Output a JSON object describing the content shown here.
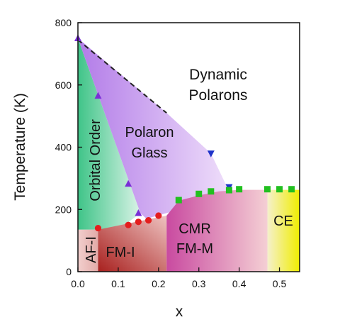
{
  "chart_data": {
    "type": "scatter",
    "title": "",
    "xlabel": "x",
    "ylabel": "Temperature (K)",
    "xlim": [
      0,
      0.55
    ],
    "ylim": [
      0,
      800
    ],
    "xticks": [
      {
        "value": 0.0,
        "label": "0.0"
      },
      {
        "value": 0.1,
        "label": "0.1"
      },
      {
        "value": 0.2,
        "label": "0.2"
      },
      {
        "value": 0.3,
        "label": "0.3"
      },
      {
        "value": 0.4,
        "label": "0.4"
      },
      {
        "value": 0.5,
        "label": "0.5"
      }
    ],
    "yticks": [
      {
        "value": 0,
        "label": "0"
      },
      {
        "value": 200,
        "label": "200"
      },
      {
        "value": 400,
        "label": "400"
      },
      {
        "value": 600,
        "label": "600"
      },
      {
        "value": 800,
        "label": "800"
      }
    ],
    "grid": false,
    "legend": "none",
    "series": [
      {
        "marker": "triangle-up",
        "color": "#7a2fd6",
        "x": [
          0.0,
          0.05,
          0.125,
          0.15
        ],
        "y": [
          750,
          565,
          282,
          188
        ]
      },
      {
        "marker": "triangle-down",
        "color": "#1f33c9",
        "x": [
          0.33,
          0.375
        ],
        "y": [
          380,
          272
        ]
      },
      {
        "marker": "circle",
        "color": "#e41e1e",
        "x": [
          0.05,
          0.125,
          0.15,
          0.175,
          0.2
        ],
        "y": [
          140,
          150,
          160,
          165,
          180
        ]
      },
      {
        "marker": "square",
        "color": "#22c020",
        "x": [
          0.25,
          0.3,
          0.33,
          0.375,
          0.4,
          0.47,
          0.5,
          0.53
        ],
        "y": [
          230,
          250,
          258,
          262,
          265,
          265,
          265,
          265
        ]
      }
    ],
    "dashed_boundary": {
      "x": [
        0.0,
        0.22
      ],
      "y": [
        745,
        510
      ],
      "color": "#222222"
    },
    "regions": [
      {
        "label": "Orbital Order",
        "color": "#3fc488",
        "polygon": [
          [
            0,
            750
          ],
          [
            0,
            135
          ],
          [
            0.1,
            135
          ],
          [
            0.155,
            188
          ]
        ]
      },
      {
        "label": "Polaron Glass",
        "color": "#c48cf0",
        "polygon": [
          [
            0,
            750
          ],
          [
            0.22,
            510
          ],
          [
            0.33,
            380
          ],
          [
            0.37,
            272
          ],
          [
            0.39,
            250
          ],
          [
            0.17,
            170
          ],
          [
            0.155,
            188
          ]
        ]
      },
      {
        "label": "AF-I",
        "color": "#e7b8b6",
        "polygon": [
          [
            0,
            135
          ],
          [
            0.05,
            135
          ],
          [
            0.05,
            0
          ],
          [
            0,
            0
          ]
        ]
      },
      {
        "label": "FM-I",
        "color": "#c43a38",
        "polygon": [
          [
            0.05,
            135
          ],
          [
            0.22,
            180
          ],
          [
            0.22,
            0
          ],
          [
            0.05,
            0
          ]
        ]
      },
      {
        "label": "CMR FM-M",
        "color": "#cf66a6",
        "polygon": [
          [
            0.22,
            180
          ],
          [
            0.25,
            228
          ],
          [
            0.3,
            245
          ],
          [
            0.35,
            258
          ],
          [
            0.4,
            263
          ],
          [
            0.47,
            263
          ],
          [
            0.47,
            0
          ],
          [
            0.22,
            0
          ]
        ]
      },
      {
        "label": "CE",
        "color": "#e8ee55",
        "polygon": [
          [
            0.47,
            263
          ],
          [
            0.55,
            263
          ],
          [
            0.55,
            0
          ],
          [
            0.47,
            0
          ]
        ]
      }
    ],
    "annotations": [
      {
        "text": "Dynamic"
      },
      {
        "text": "Polarons"
      },
      {
        "text": "Polaron"
      },
      {
        "text": "Glass"
      },
      {
        "text": "Orbital Order"
      },
      {
        "text": "AF-I"
      },
      {
        "text": "FM-I"
      },
      {
        "text": "CMR"
      },
      {
        "text": "FM-M"
      },
      {
        "text": "CE"
      }
    ]
  }
}
